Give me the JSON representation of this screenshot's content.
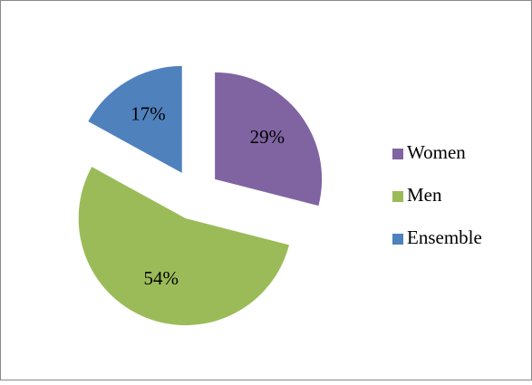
{
  "chart_data": {
    "type": "pie",
    "categories": [
      "Women",
      "Men",
      "Ensemble"
    ],
    "values": [
      29,
      54,
      17
    ],
    "value_labels": [
      "29%",
      "54%",
      "17%"
    ],
    "colors": [
      "#8064a2",
      "#9bbb59",
      "#4f81bd"
    ],
    "exploded": true,
    "legend": "right"
  }
}
